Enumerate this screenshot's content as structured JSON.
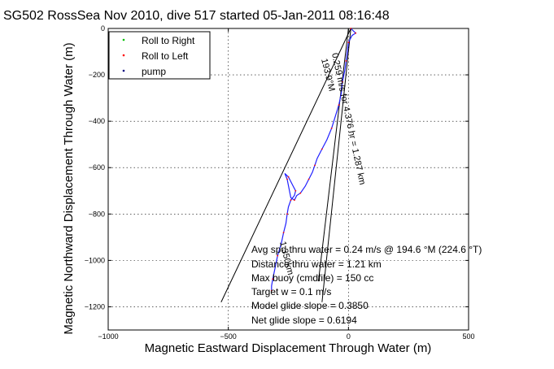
{
  "chart_data": {
    "type": "line",
    "title": "SG502 RossSea Nov 2010, dive 517 started 05-Jan-2011 08:16:48",
    "xlabel": "Magnetic Eastward Displacement Through Water (m)",
    "ylabel": "Magnetic Northward Displacement Through Water (m)",
    "xlim": [
      -1000,
      500
    ],
    "ylim": [
      -1300,
      0
    ],
    "xticks": [
      -1000,
      -500,
      0,
      500
    ],
    "xtick_labels": [
      "−1000",
      "−500",
      "0",
      "500"
    ],
    "yticks": [
      0,
      -200,
      -400,
      -600,
      -800,
      -1000,
      -1200
    ],
    "ytick_labels": [
      "0",
      "−200",
      "−400",
      "−600",
      "−800",
      "−1000",
      "−1200"
    ],
    "grid": true,
    "legend_position": "top-left",
    "legend": [
      {
        "name": "Roll to Right",
        "color": "#00c000",
        "marker": "dot"
      },
      {
        "name": "Roll to Left",
        "color": "#ff0000",
        "marker": "dot"
      },
      {
        "name": "pump",
        "color": "#000080",
        "marker": "dot"
      }
    ],
    "series": [
      {
        "name": "track",
        "color": "#2020ff",
        "x": [
          10,
          20,
          30,
          15,
          0,
          -5,
          -10,
          -15,
          -25,
          -30,
          -40,
          -55,
          -70,
          -90,
          -110,
          -130,
          -140,
          -150,
          -165,
          -180,
          -200,
          -215,
          -225,
          -240,
          -255,
          -265,
          -250,
          -230,
          -220,
          -225,
          -240,
          -250,
          -255,
          -260,
          -270,
          -280,
          -295,
          -305,
          -315,
          -320,
          -320
        ],
        "y": [
          0,
          -10,
          -20,
          -30,
          -60,
          -100,
          -140,
          -180,
          -230,
          -280,
          -330,
          -380,
          -430,
          -480,
          -520,
          -560,
          -590,
          -620,
          -650,
          -680,
          -710,
          -720,
          -740,
          -730,
          -650,
          -625,
          -640,
          -680,
          -700,
          -720,
          -740,
          -770,
          -800,
          -840,
          -880,
          -930,
          -980,
          -1030,
          -1080,
          -1110,
          -1130
        ]
      }
    ],
    "lines": [
      {
        "x": [
          -530,
          10
        ],
        "y": [
          -1180,
          0
        ],
        "color": "#000000"
      },
      {
        "x": [
          -110,
          10
        ],
        "y": [
          -1180,
          0
        ],
        "color": "#000000"
      },
      {
        "x": [
          -125,
          0
        ],
        "y": [
          -1090,
          0
        ],
        "color": "#000000"
      }
    ],
    "rotated_labels": [
      "193.9°M",
      "0.259 m/s for 4.376 hr = 1.287 km",
      "1.350km"
    ],
    "annotations": [
      "Avg spd thru water =  0.24 m/s @ 194.6   °M (224.6 °T)",
      "Distance thru water =  1.21 km",
      "Max buoy (cmdfile) = 150 cc",
      "Target w = 0.1 m/s",
      "Model glide slope = 0.3850",
      "Net glide slope = 0.6194"
    ]
  }
}
